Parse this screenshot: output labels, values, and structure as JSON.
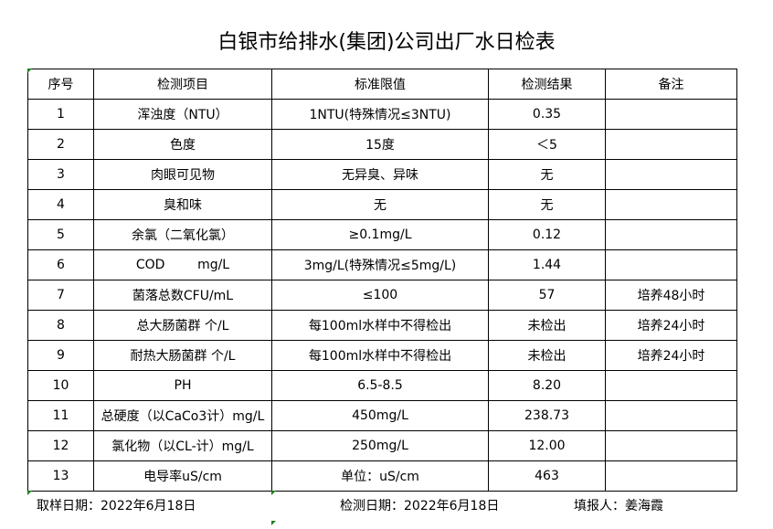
{
  "title": "白银市给排水(集团)公司出厂水日检表",
  "headers": [
    "序号",
    "检测项目",
    "标准限值",
    "检测结果",
    "备注"
  ],
  "rows": [
    [
      "1",
      "浑浊度（NTU）",
      "1NTU(特殊情况≤3NTU)",
      "0.35",
      ""
    ],
    [
      "2",
      "色度",
      "15度",
      "＜5",
      ""
    ],
    [
      "3",
      "肉眼可见物",
      "无异臭、异味",
      "无",
      ""
    ],
    [
      "4",
      "臭和味",
      "无",
      "无",
      ""
    ],
    [
      "5",
      "余氯（二氧化氯）",
      "≥0.1mg/L",
      "0.12",
      ""
    ],
    [
      "6",
      "COD        mg/L",
      "3mg/L(特殊情况≤5mg/L)",
      "1.44",
      ""
    ],
    [
      "7",
      "菌落总数CFU/mL",
      "≤100",
      "57",
      "培养48小时"
    ],
    [
      "8",
      "总大肠菌群 个/L",
      "每100ml水样中不得检出",
      "未检出",
      "培养24小时"
    ],
    [
      "9",
      "耐热大肠菌群 个/L",
      "每100ml水样中不得检出",
      "未检出",
      "培养24小时"
    ],
    [
      "10",
      "PH",
      "6.5-8.5",
      "8.20",
      ""
    ],
    [
      "11",
      "总硬度（以CaCo3计）mg/L",
      "450mg/L",
      "238.73",
      ""
    ],
    [
      "12",
      "氯化物（以CL-计）mg/L",
      "250mg/L",
      "12.00",
      ""
    ],
    [
      "13",
      "电导率uS/cm",
      "单位：uS/cm",
      "463",
      ""
    ]
  ],
  "footer": {
    "sample_date": "取样日期：2022年6月18日",
    "test_date": "检测日期：2022年6月18日",
    "reporter": "填报人：姜海霞"
  }
}
